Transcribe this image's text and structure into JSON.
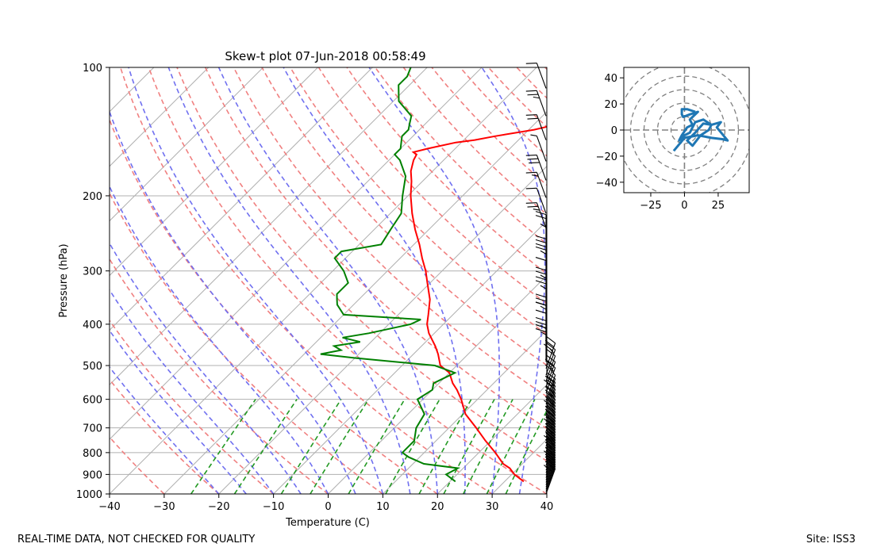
{
  "chart_data": [
    {
      "type": "line",
      "title": "Skew-t plot 07-Jun-2018 00:58:49",
      "xlabel": "Temperature (C)",
      "ylabel": "Pressure (hPa)",
      "xlim": [
        -40,
        40
      ],
      "ylim": [
        1000,
        100
      ],
      "yscale": "log",
      "skew": 45,
      "grid": true,
      "xticks": [
        -40,
        -30,
        -20,
        -10,
        0,
        10,
        20,
        30,
        40
      ],
      "yticks": [
        1000,
        900,
        800,
        700,
        600,
        500,
        400,
        300,
        200,
        100
      ],
      "colors": {
        "temperature": "#ff0000",
        "dewpoint": "#008000",
        "dry_adiabats": "#f08080",
        "moist_adiabats": "#7070f0",
        "mixing_ratio": "#229922",
        "barbs": "#000000"
      },
      "series": [
        {
          "key": "temperature",
          "color": "#ff0000",
          "points": [
            [
              935,
              33.5
            ],
            [
              900,
              30.5
            ],
            [
              870,
              28.5
            ],
            [
              850,
              26.5
            ],
            [
              800,
              23
            ],
            [
              750,
              19
            ],
            [
              700,
              15
            ],
            [
              650,
              10.5
            ],
            [
              600,
              7
            ],
            [
              570,
              4.5
            ],
            [
              550,
              2.5
            ],
            [
              520,
              0
            ],
            [
              500,
              -3
            ],
            [
              470,
              -5.5
            ],
            [
              450,
              -7.5
            ],
            [
              420,
              -11
            ],
            [
              400,
              -13
            ],
            [
              380,
              -14.5
            ],
            [
              350,
              -17
            ],
            [
              320,
              -20.5
            ],
            [
              300,
              -23
            ],
            [
              280,
              -26
            ],
            [
              260,
              -29
            ],
            [
              240,
              -32.5
            ],
            [
              220,
              -36
            ],
            [
              200,
              -39.5
            ],
            [
              185,
              -42
            ],
            [
              175,
              -44
            ],
            [
              165,
              -45.5
            ],
            [
              160,
              -46
            ],
            [
              158,
              -47
            ],
            [
              155,
              -45
            ],
            [
              150,
              -41
            ],
            [
              148,
              -38
            ],
            [
              145,
              -35
            ],
            [
              140,
              -29
            ],
            [
              135,
              -25
            ],
            [
              130,
              -22
            ],
            [
              125,
              -20
            ],
            [
              120,
              -16
            ],
            [
              115,
              -13
            ],
            [
              110,
              -10
            ],
            [
              106,
              -9
            ],
            [
              103,
              -7
            ],
            [
              100,
              -5
            ]
          ]
        },
        {
          "key": "dewpoint",
          "color": "#008000",
          "points": [
            [
              935,
              21
            ],
            [
              900,
              18
            ],
            [
              870,
              19
            ],
            [
              850,
              12
            ],
            [
              820,
              8
            ],
            [
              800,
              6
            ],
            [
              750,
              6
            ],
            [
              700,
              4
            ],
            [
              650,
              3
            ],
            [
              600,
              -1
            ],
            [
              570,
              0
            ],
            [
              550,
              -1
            ],
            [
              520,
              1
            ],
            [
              500,
              -4
            ],
            [
              480,
              -20
            ],
            [
              470,
              -27
            ],
            [
              460,
              -24
            ],
            [
              450,
              -26
            ],
            [
              440,
              -22
            ],
            [
              430,
              -26
            ],
            [
              420,
              -22
            ],
            [
              400,
              -16
            ],
            [
              390,
              -15
            ],
            [
              380,
              -30
            ],
            [
              360,
              -33
            ],
            [
              350,
              -34
            ],
            [
              340,
              -35
            ],
            [
              320,
              -35
            ],
            [
              300,
              -38
            ],
            [
              280,
              -42
            ],
            [
              270,
              -42
            ],
            [
              260,
              -36
            ],
            [
              240,
              -37
            ],
            [
              220,
              -38
            ],
            [
              200,
              -41
            ],
            [
              180,
              -44
            ],
            [
              165,
              -48
            ],
            [
              160,
              -50
            ],
            [
              155,
              -50
            ],
            [
              145,
              -52
            ],
            [
              140,
              -52
            ],
            [
              135,
              -53
            ],
            [
              130,
              -54
            ],
            [
              120,
              -59
            ],
            [
              110,
              -62
            ],
            [
              105,
              -62
            ],
            [
              100,
              -63
            ]
          ]
        }
      ],
      "wind_barbs": "black wind barbs along right edge, surface to 100 hPa"
    },
    {
      "type": "line",
      "title": "",
      "xlim": [
        -45,
        48
      ],
      "ylim": [
        -48,
        48
      ],
      "xticks": [
        -25,
        0,
        25
      ],
      "yticks": [
        -40,
        -20,
        0,
        20,
        40
      ],
      "rings": [
        10,
        20,
        30,
        40,
        50
      ],
      "series": [
        {
          "key": "hodograph",
          "color": "#1f77b4",
          "points": [
            [
              -8,
              -16
            ],
            [
              0,
              -6
            ],
            [
              10,
              -4
            ],
            [
              20,
              -6
            ],
            [
              28,
              -7
            ],
            [
              32,
              -8
            ],
            [
              24,
              2
            ],
            [
              27,
              6
            ],
            [
              20,
              4
            ],
            [
              14,
              5
            ],
            [
              8,
              -2
            ],
            [
              2,
              -8
            ],
            [
              6,
              -12
            ],
            [
              12,
              -4
            ],
            [
              18,
              0
            ],
            [
              20,
              4
            ],
            [
              14,
              8
            ],
            [
              8,
              6
            ],
            [
              4,
              -2
            ],
            [
              0,
              -4
            ],
            [
              -4,
              -8
            ],
            [
              -2,
              -4
            ],
            [
              2,
              2
            ],
            [
              6,
              4
            ],
            [
              4,
              8
            ],
            [
              6,
              10
            ],
            [
              10,
              14
            ],
            [
              4,
              12
            ],
            [
              -1,
              10
            ],
            [
              -2,
              12
            ],
            [
              -2,
              16
            ],
            [
              2,
              16
            ],
            [
              8,
              14
            ]
          ]
        }
      ]
    }
  ],
  "footer": {
    "disclaimer": "REAL-TIME DATA, NOT CHECKED FOR QUALITY",
    "site": "Site: ISS3"
  }
}
